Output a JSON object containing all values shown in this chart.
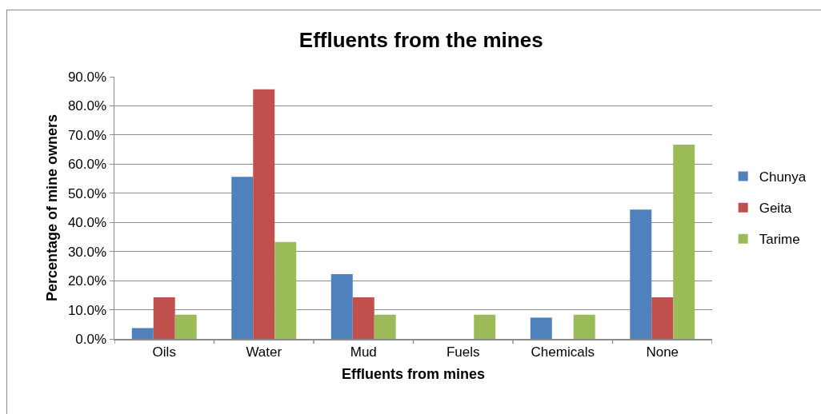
{
  "chart_data": {
    "type": "bar",
    "title": "Effluents from the mines",
    "xlabel": "Effluents from mines",
    "ylabel": "Percentage of mine owners",
    "categories": [
      "Oils",
      "Water",
      "Mud",
      "Fuels",
      "Chemicals",
      "None"
    ],
    "series": [
      {
        "name": "Chunya",
        "color": "#4f81bd",
        "values": [
          3.7,
          55.6,
          22.2,
          0,
          7.3,
          44.4
        ]
      },
      {
        "name": "Geita",
        "color": "#c0504d",
        "values": [
          14.3,
          85.7,
          14.3,
          0,
          0,
          14.3
        ]
      },
      {
        "name": "Tarime",
        "color": "#9bbb59",
        "values": [
          8.3,
          33.3,
          8.3,
          8.3,
          8.3,
          66.7
        ]
      }
    ],
    "ylim": [
      0,
      90
    ],
    "yticks": [
      {
        "value": 0,
        "label": "0.0%"
      },
      {
        "value": 10,
        "label": "10.0%"
      },
      {
        "value": 20,
        "label": "20.0%"
      },
      {
        "value": 30,
        "label": "30.0%"
      },
      {
        "value": 40,
        "label": "40.0%"
      },
      {
        "value": 50,
        "label": "50.0%"
      },
      {
        "value": 60,
        "label": "60.0%"
      },
      {
        "value": 70,
        "label": "70.0%"
      },
      {
        "value": 80,
        "label": "80.0%"
      },
      {
        "value": 90,
        "label": "90.0%"
      }
    ],
    "grid": "y",
    "legend": "right"
  }
}
